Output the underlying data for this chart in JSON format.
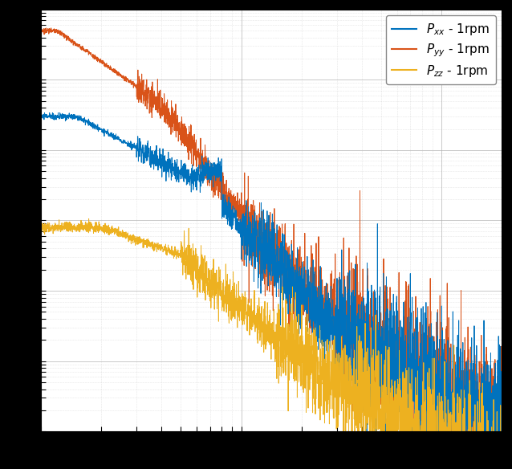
{
  "colors": {
    "Pxx": "#0072BD",
    "Pyy": "#D95319",
    "Pzz": "#EDB120"
  },
  "legend_labels": [
    "$P_{xx}$ - 1rpm",
    "$P_{yy}$ - 1rpm",
    "$P_{zz}$ - 1rpm"
  ],
  "freq_min": 1,
  "freq_max": 200,
  "ylim_log_min": -10,
  "ylim_log_max": -4,
  "background_color": "#ffffff",
  "fig_background": "#000000",
  "grid_color": "#b0b0b0",
  "figsize": [
    6.38,
    5.84
  ],
  "dpi": 100,
  "N_points": 3000,
  "seed_xx": 10,
  "seed_yy": 20,
  "seed_zz": 30
}
